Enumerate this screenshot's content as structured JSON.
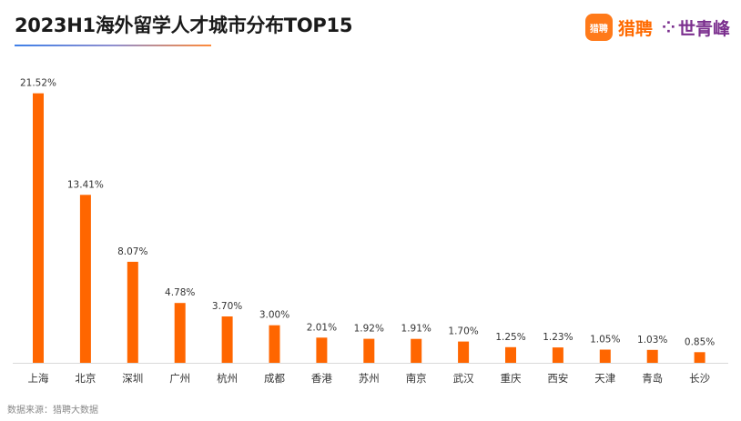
{
  "header": {
    "title": "2023H1海外留学人才城市分布TOP15"
  },
  "logo": {
    "badge_text": "猎聘",
    "brand1": "猎聘",
    "mark": "⁘",
    "brand2": "世青峰"
  },
  "footer": {
    "source": "数据来源：猎聘大数据"
  },
  "colors": {
    "bar": "#ff6600",
    "accent_blue": "#3f80e8",
    "accent_orange": "#ff8a3a",
    "brand_purple": "#7b2f8e"
  },
  "chart_data": {
    "type": "bar",
    "title": "2023H1海外留学人才城市分布TOP15",
    "xlabel": "",
    "ylabel": "",
    "ylim": [
      0,
      22
    ],
    "grid": false,
    "categories": [
      "上海",
      "北京",
      "深圳",
      "广州",
      "杭州",
      "成都",
      "香港",
      "苏州",
      "南京",
      "武汉",
      "重庆",
      "西安",
      "天津",
      "青岛",
      "长沙"
    ],
    "values": [
      21.52,
      13.41,
      8.07,
      4.78,
      3.7,
      3.0,
      2.01,
      1.92,
      1.91,
      1.7,
      1.25,
      1.23,
      1.05,
      1.03,
      0.85
    ],
    "value_labels": [
      "21.52%",
      "13.41%",
      "8.07%",
      "4.78%",
      "3.70%",
      "3.00%",
      "2.01%",
      "1.92%",
      "1.91%",
      "1.70%",
      "1.25%",
      "1.23%",
      "1.05%",
      "1.03%",
      "0.85%"
    ]
  }
}
